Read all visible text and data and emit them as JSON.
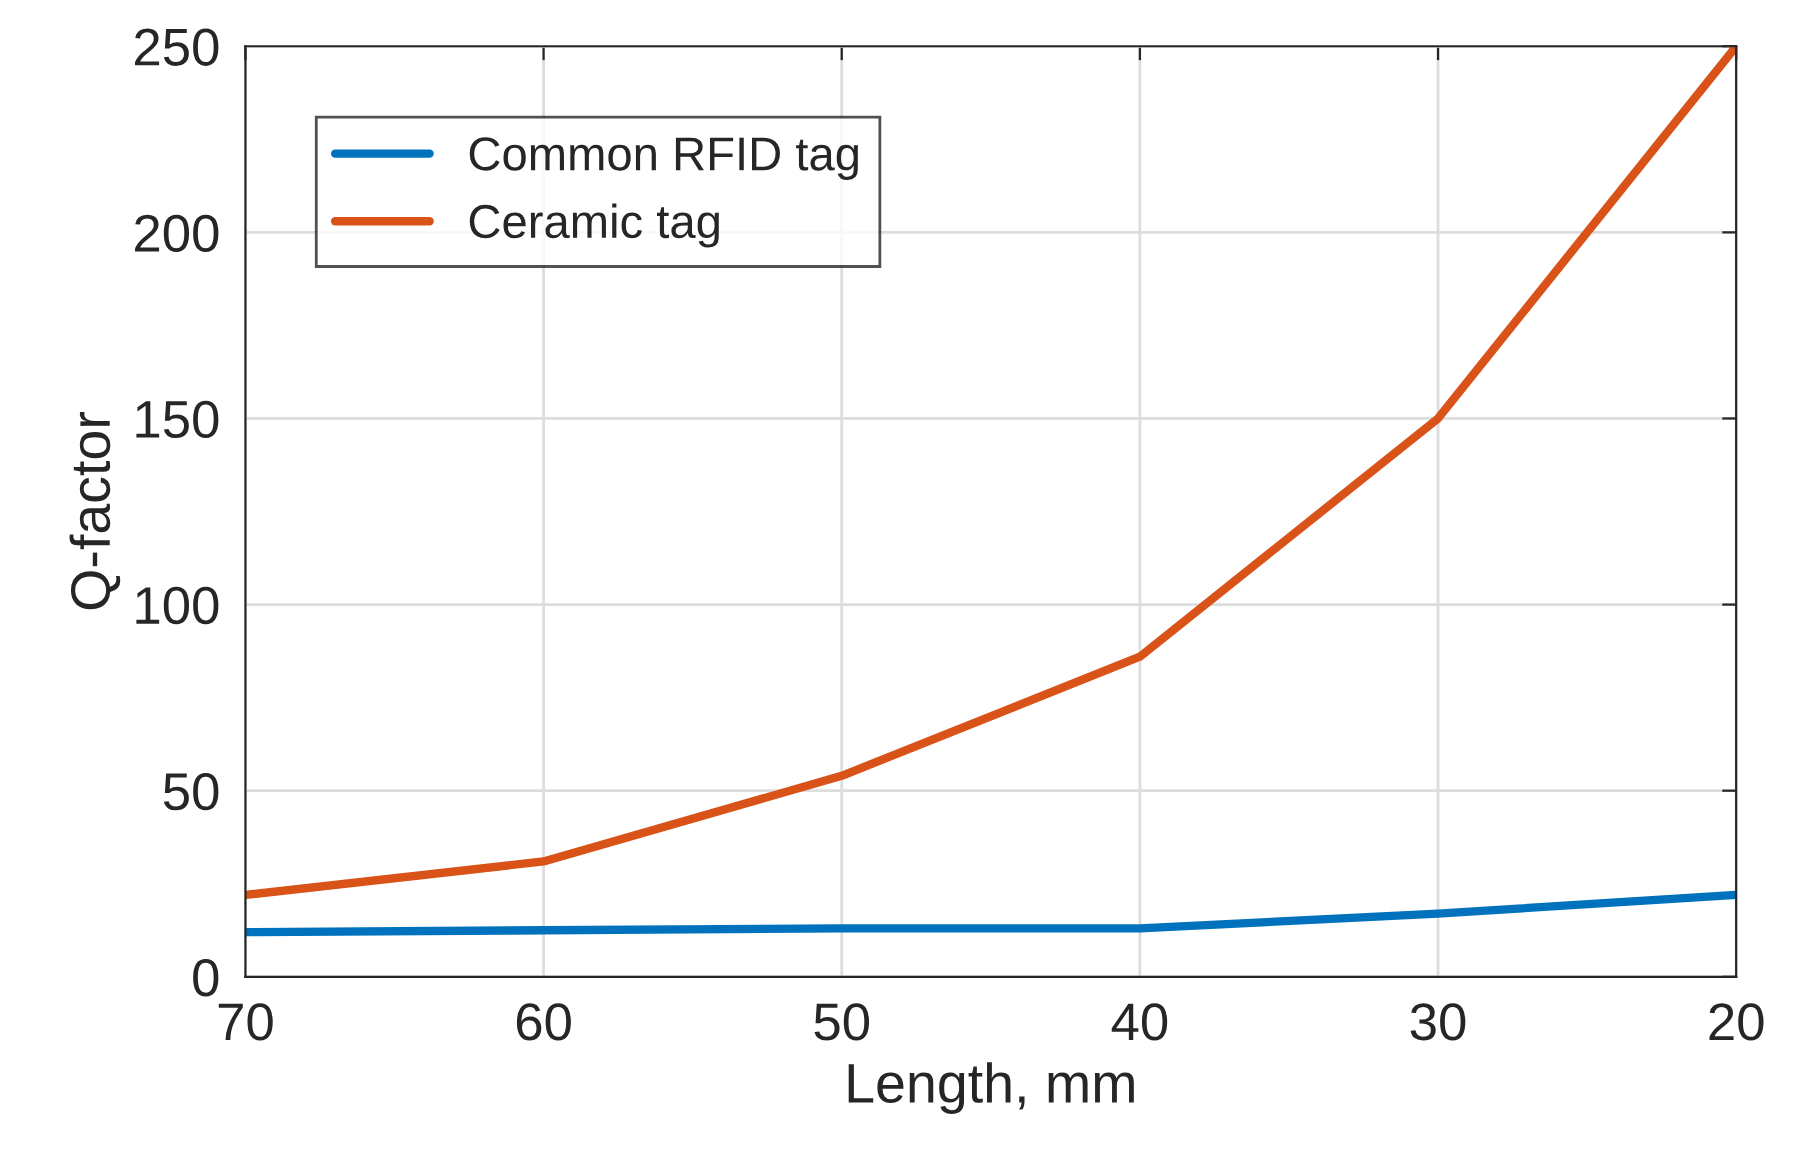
{
  "chart_data": {
    "type": "line",
    "xlabel": "Length, mm",
    "ylabel": "Q-factor",
    "x": [
      70,
      60,
      50,
      40,
      30,
      20
    ],
    "series": [
      {
        "name": "Common RFID tag",
        "color": "#0072bd",
        "values": [
          12,
          12.5,
          13,
          13,
          17,
          22
        ]
      },
      {
        "name": "Ceramic tag",
        "color": "#d95319",
        "values": [
          22,
          31,
          54,
          86,
          150,
          250
        ]
      }
    ],
    "xlim": [
      70,
      20
    ],
    "xticks": [
      70,
      60,
      50,
      40,
      30,
      20
    ],
    "ylim": [
      0,
      250
    ],
    "yticks": [
      0,
      50,
      100,
      150,
      200,
      250
    ],
    "grid": true,
    "legend": "top left",
    "marker": "none",
    "line_style": "solid"
  }
}
